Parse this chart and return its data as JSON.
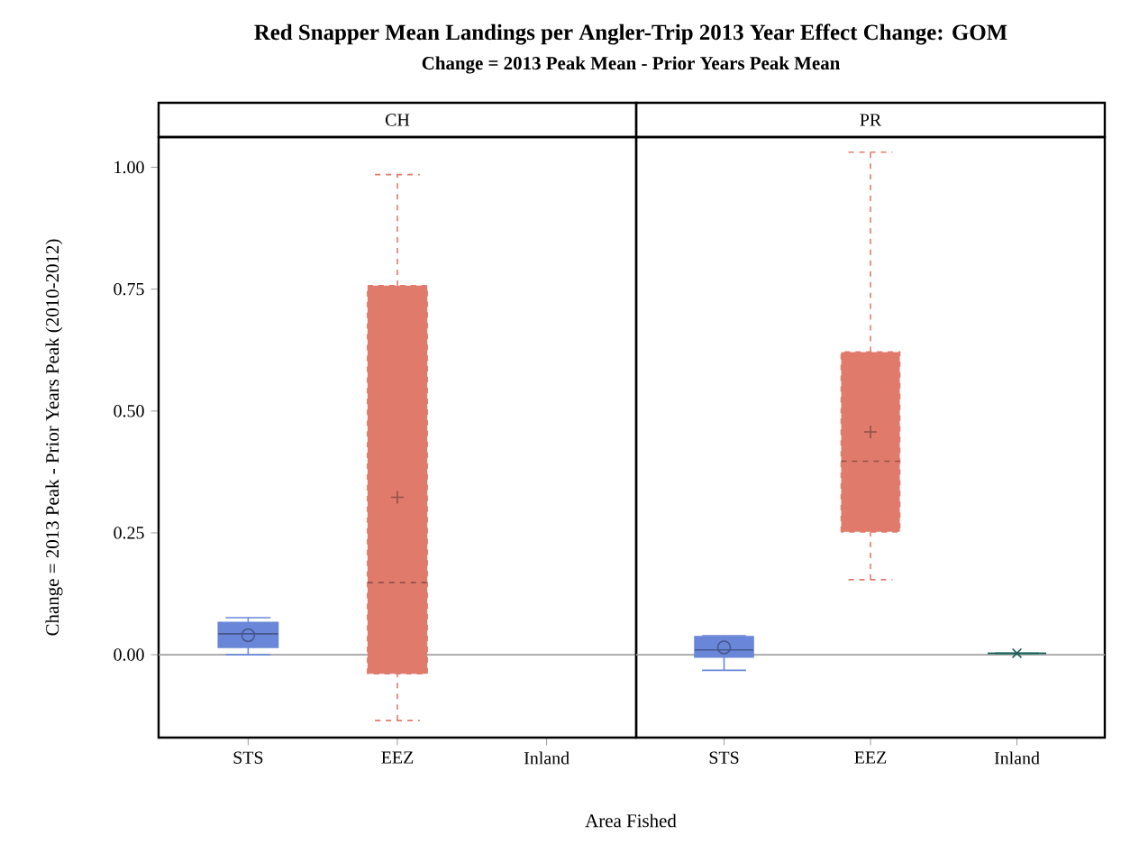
{
  "chart_data": [
    {
      "type": "box",
      "title": "Red Snapper Mean Landings per Angler-Trip 2013 Year Effect Change: GOM",
      "subtitle": "Change = 2013 Peak Mean - Prior Years Peak Mean",
      "xlabel": "Area Fished",
      "ylabel": "Change = 2013 Peak - Prior Years Peak (2010-2012)",
      "annotations": [
        "CH"
      ],
      "categories": [
        "STS",
        "EEZ",
        "Inland"
      ],
      "series": [
        {
          "color": "#6a86d8",
          "line_style": "solid",
          "marker": "circle",
          "boxes": [
            {
              "low": 0.0,
              "q1": 0.015,
              "median": 0.043,
              "q3": 0.066,
              "high": 0.076,
              "mean": 0.04
            },
            null,
            null
          ]
        },
        {
          "color": "#e07b6c",
          "line_style": "dashed",
          "marker": "plus",
          "boxes": [
            null,
            {
              "low": -0.135,
              "q1": -0.039,
              "median": 0.148,
              "q3": 0.757,
              "high": 0.985,
              "mean": 0.323
            },
            null
          ]
        },
        {
          "color": "#2e8b80",
          "line_style": "solid",
          "marker": "cross",
          "boxes": [
            null,
            null,
            null
          ]
        }
      ],
      "ylim": [
        -0.17,
        1.062
      ],
      "yticks": [
        {
          "value": 0,
          "label": "0.00"
        },
        {
          "value": 0.25,
          "label": "0.25"
        },
        {
          "value": 0.5,
          "label": "0.50"
        },
        {
          "value": 0.75,
          "label": "0.75"
        },
        {
          "value": 1,
          "label": "1.00"
        }
      ],
      "ref_lines": [
        {
          "axis": "y",
          "value": 0,
          "color": "#a0a0a0"
        }
      ]
    },
    {
      "type": "box",
      "annotations": [
        "PR"
      ],
      "categories": [
        "STS",
        "EEZ",
        "Inland"
      ],
      "series": [
        {
          "color": "#6a86d8",
          "line_style": "solid",
          "marker": "circle",
          "boxes": [
            {
              "low": -0.032,
              "q1": -0.005,
              "median": 0.01,
              "q3": 0.037,
              "high": 0.039,
              "mean": 0.015
            },
            null,
            null
          ]
        },
        {
          "color": "#e07b6c",
          "line_style": "dashed",
          "marker": "plus",
          "boxes": [
            null,
            {
              "low": 0.154,
              "q1": 0.252,
              "median": 0.397,
              "q3": 0.621,
              "high": 1.031,
              "mean": 0.457
            },
            null
          ]
        },
        {
          "color": "#2e8b80",
          "line_style": "solid",
          "marker": "cross",
          "boxes": [
            null,
            null,
            {
              "low": 0.003,
              "q1": 0.003,
              "median": 0.003,
              "q3": 0.003,
              "high": 0.003,
              "mean": 0.003
            }
          ]
        }
      ],
      "ylim": [
        -0.17,
        1.062
      ],
      "tick_labels": "x",
      "ref_lines": [
        {
          "axis": "y",
          "value": 0,
          "color": "#a0a0a0"
        }
      ]
    }
  ]
}
